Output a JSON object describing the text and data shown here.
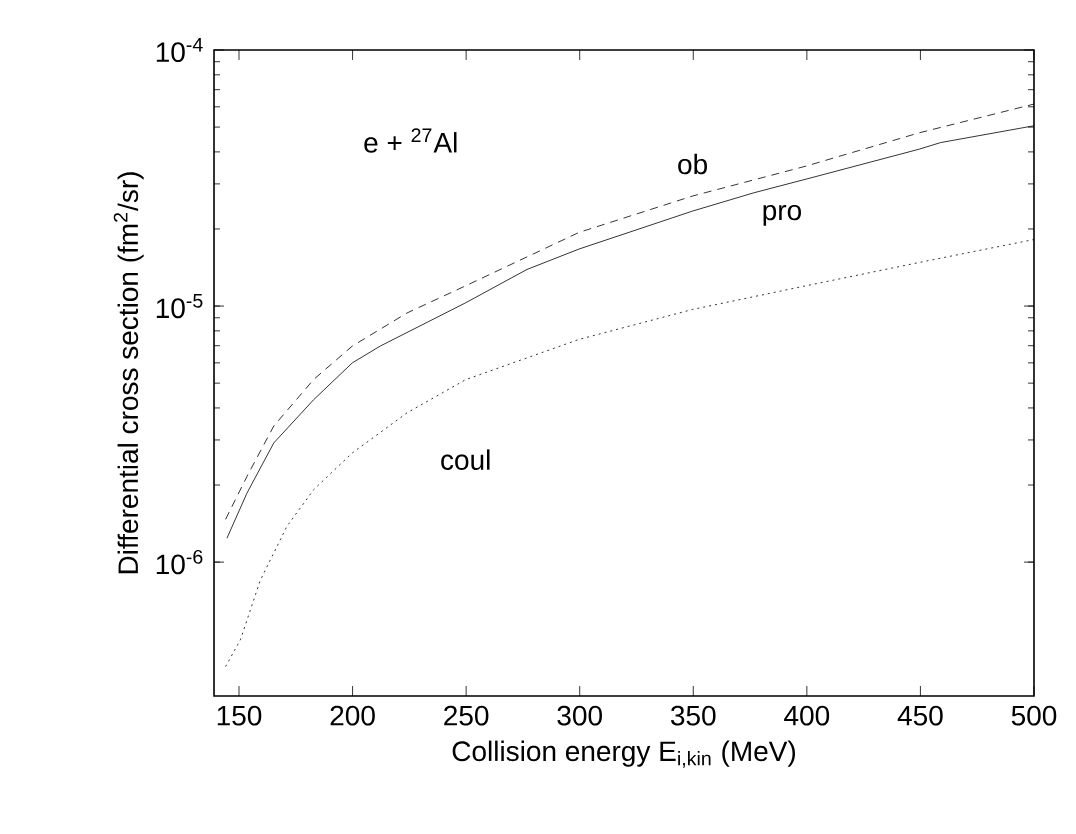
{
  "chart_data": {
    "type": "line",
    "xlabel": "Collision energy E$_{i,kin}$  (MeV)",
    "ylabel": "Differential cross section  (fm$^{2}$/sr)",
    "annotations": [
      "e + $^{27}$Al"
    ],
    "xlim": [
      139,
      500
    ],
    "xticks": [
      150,
      200,
      250,
      300,
      350,
      400,
      450,
      500
    ],
    "ylim": [
      3e-07,
      0.0001
    ],
    "log": "y",
    "yticks": [
      {
        "value": 1e-06,
        "label": "10$^{-6}$"
      },
      {
        "value": 1e-05,
        "label": "10$^{-5}$"
      },
      {
        "value": 0.0001,
        "label": "10$^{-4}$"
      }
    ],
    "grid": false,
    "legend": false,
    "marker": "none",
    "series": [
      {
        "name": "pro",
        "color": "#000000",
        "line_style": "solid",
        "x": [
          144.7,
          153.5,
          165.3,
          182.9,
          199.9,
          212.2,
          249.8,
          276.8,
          299.7,
          349.7,
          376.7,
          399.6,
          449.5,
          458.9,
          500
        ],
        "values": [
          1.24e-06,
          1.86e-06,
          2.92e-06,
          4.31e-06,
          6e-06,
          6.98e-06,
          1.03e-05,
          1.39e-05,
          1.67e-05,
          2.35e-05,
          2.77e-05,
          3.13e-05,
          4.1e-05,
          4.35e-05,
          5.06e-05
        ]
      },
      {
        "name": "ob",
        "color": "#000000",
        "line_style": "dashed",
        "x": [
          144.1,
          153.5,
          165.3,
          182.9,
          199.9,
          224,
          249.8,
          299.7,
          349.7,
          399.6,
          449.5,
          500
        ],
        "values": [
          1.47e-06,
          2.16e-06,
          3.4e-06,
          5.17e-06,
          6.98e-06,
          9.4e-06,
          1.2e-05,
          1.94e-05,
          2.69e-05,
          3.52e-05,
          4.75e-05,
          6.15e-05
        ]
      },
      {
        "name": "coul",
        "color": "#000000",
        "line_style": "dotted",
        "x": [
          144.1,
          150.6,
          159.4,
          171.1,
          182.9,
          199.9,
          224,
          249.8,
          299.7,
          349.7,
          399.6,
          449.5,
          500
        ],
        "values": [
          3.91e-07,
          4.97e-07,
          8.5e-07,
          1.38e-06,
          1.92e-06,
          2.67e-06,
          3.83e-06,
          5.16e-06,
          7.41e-06,
          9.7e-06,
          1.2e-05,
          1.48e-05,
          1.82e-05
        ]
      }
    ]
  }
}
